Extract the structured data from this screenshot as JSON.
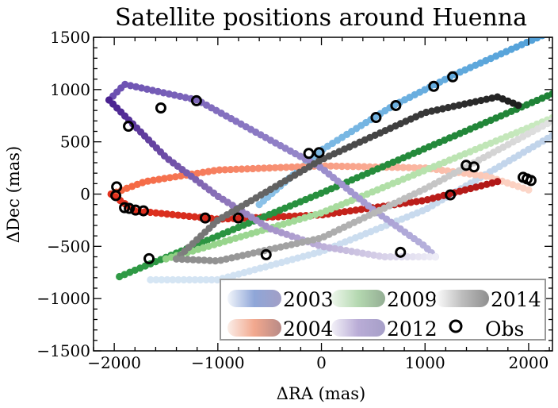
{
  "chart_data": {
    "type": "scatter",
    "title": "Satellite positions around Huenna",
    "xlabel": "ΔRA (mas)",
    "ylabel": "ΔDec (mas)",
    "xlim": [
      -2200,
      2230
    ],
    "ylim": [
      -1500,
      1500
    ],
    "xticks": [
      -2000,
      -1000,
      0,
      1000,
      2000
    ],
    "xtick_labels": [
      "−2000",
      "−1000",
      "0",
      "1000",
      "2000"
    ],
    "yticks": [
      -1500,
      -1000,
      -500,
      0,
      500,
      1000,
      1500
    ],
    "ytick_labels": [
      "−1500",
      "−1000",
      "−500",
      "0",
      "500",
      "1000",
      "1500"
    ],
    "grid": false,
    "legend_placement": "lower-right",
    "series": [
      {
        "name": "2003",
        "legend_colors": [
          "#f2f6fb",
          "#8fa6d8",
          "#a29fc6"
        ],
        "branches": [
          {
            "points": [
              [
                -600,
                -100
              ],
              [
                0,
                420
              ],
              [
                700,
                850
              ],
              [
                1300,
                1150
              ],
              [
                2230,
                1560
              ]
            ],
            "colors": [
              "#8cc2e8",
              "#4f9fd8"
            ]
          },
          {
            "points": [
              [
                -1650,
                -820
              ],
              [
                -1000,
                -820
              ],
              [
                0,
                -550
              ],
              [
                1000,
                -150
              ],
              [
                2230,
                560
              ]
            ],
            "colors": [
              "#d6e6f4",
              "#c0d3ea"
            ]
          }
        ]
      },
      {
        "name": "2004",
        "legend_colors": [
          "#fbeee8",
          "#f2a88e",
          "#b88a86"
        ],
        "branches": [
          {
            "points": [
              [
                -2030,
                0
              ],
              [
                -1700,
                120
              ],
              [
                -1000,
                230
              ],
              [
                0,
                270
              ],
              [
                1000,
                250
              ],
              [
                1600,
                170
              ],
              [
                2000,
                40
              ]
            ],
            "colors": [
              "#f4623c",
              "#fcd6c8"
            ]
          },
          {
            "points": [
              [
                -2030,
                0
              ],
              [
                -1800,
                -160
              ],
              [
                -1000,
                -240
              ],
              [
                0,
                -200
              ],
              [
                1000,
                -60
              ],
              [
                1700,
                120
              ]
            ],
            "colors": [
              "#e2321f",
              "#b01818"
            ]
          }
        ]
      },
      {
        "name": "2009",
        "legend_colors": [
          "#eef7ec",
          "#b4d8b0",
          "#94ae94"
        ],
        "branches": [
          {
            "points": [
              [
                -1950,
                -790
              ],
              [
                0,
                10
              ],
              [
                2230,
                960
              ]
            ],
            "colors": [
              "#2f9a45",
              "#1f8236"
            ]
          },
          {
            "points": [
              [
                -1500,
                -620
              ],
              [
                0,
                -180
              ],
              [
                2230,
                730
              ]
            ],
            "colors": [
              "#8fd184",
              "#cbeac2"
            ]
          }
        ]
      },
      {
        "name": "2012",
        "legend_colors": [
          "#f3f1f8",
          "#b9acd6",
          "#a69fc8"
        ],
        "branches": [
          {
            "points": [
              [
                -2050,
                900
              ],
              [
                -1900,
                1050
              ],
              [
                -1200,
                900
              ],
              [
                -500,
                520
              ],
              [
                0,
                250
              ],
              [
                500,
                -150
              ],
              [
                1000,
                -500
              ],
              [
                1100,
                -600
              ]
            ],
            "colors": [
              "#6a4eb0",
              "#b8b3dd"
            ]
          },
          {
            "points": [
              [
                -2050,
                900
              ],
              [
                -1500,
                350
              ],
              [
                -1000,
                -20
              ],
              [
                -500,
                -330
              ],
              [
                0,
                -500
              ],
              [
                600,
                -600
              ],
              [
                1100,
                -600
              ]
            ],
            "colors": [
              "#4a2290",
              "#eeedf7"
            ]
          }
        ]
      },
      {
        "name": "2014",
        "legend_colors": [
          "#ffffff",
          "#bdbdbd",
          "#8f8f8f"
        ],
        "branches": [
          {
            "points": [
              [
                -1400,
                -620
              ],
              [
                -1000,
                -250
              ],
              [
                0,
                330
              ],
              [
                1000,
                780
              ],
              [
                1700,
                930
              ],
              [
                1900,
                850
              ]
            ],
            "colors": [
              "#808080",
              "#1e1e1e"
            ]
          },
          {
            "points": [
              [
                -1400,
                -620
              ],
              [
                -1000,
                -640
              ],
              [
                0,
                -420
              ],
              [
                1000,
                50
              ],
              [
                2230,
                700
              ]
            ],
            "colors": [
              "#8a8a8a",
              "#e2e2e2"
            ]
          }
        ]
      }
    ],
    "observations": {
      "name": "Obs",
      "points": [
        [
          -1550,
          824
        ],
        [
          -1206,
          893
        ],
        [
          -1863,
          649
        ],
        [
          -1977,
          69
        ],
        [
          -1985,
          -15
        ],
        [
          -1901,
          -130
        ],
        [
          -1855,
          -137
        ],
        [
          -1794,
          -153
        ],
        [
          -1718,
          -160
        ],
        [
          -1122,
          -229
        ],
        [
          -802,
          -229
        ],
        [
          -1664,
          -618
        ],
        [
          -534,
          -580
        ],
        [
          -122,
          389
        ],
        [
          -23,
          397
        ],
        [
          527,
          733
        ],
        [
          718,
          847
        ],
        [
          1084,
          1031
        ],
        [
          1267,
          1122
        ],
        [
          763,
          -557
        ],
        [
          1244,
          -8
        ],
        [
          1397,
          275
        ],
        [
          1473,
          260
        ],
        [
          1947,
          160
        ],
        [
          1985,
          145
        ],
        [
          2023,
          130
        ]
      ]
    }
  }
}
